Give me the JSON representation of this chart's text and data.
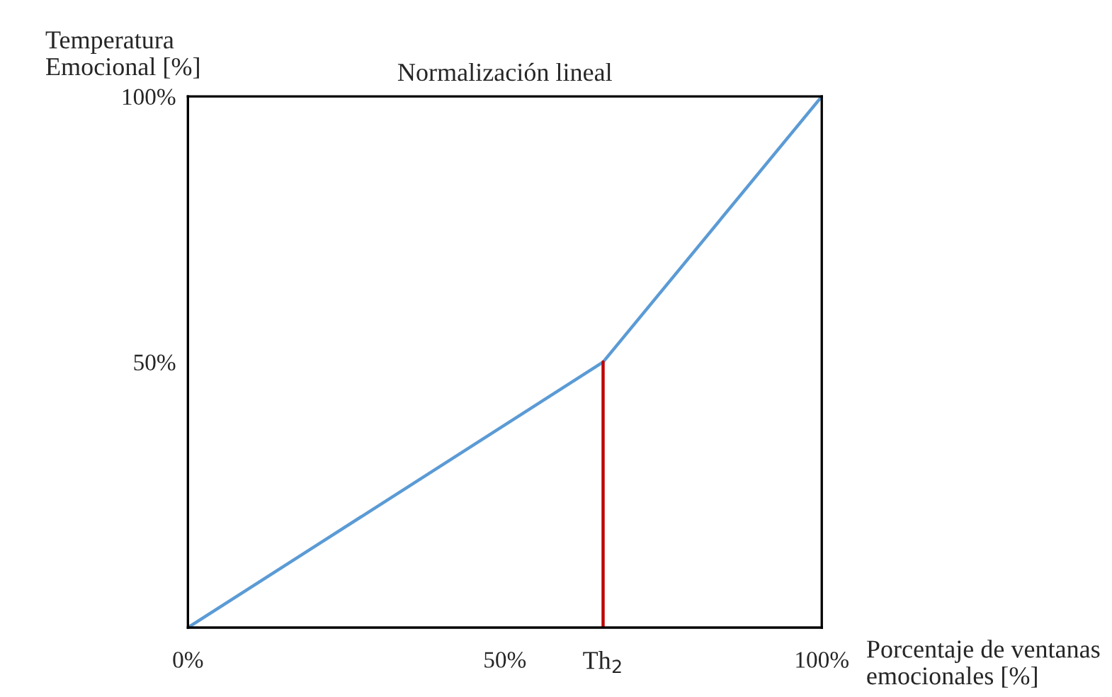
{
  "chart_data": {
    "type": "line",
    "title": "Normalización lineal",
    "xlabel": "Porcentaje de ventanas\nemocionales [%]",
    "ylabel": "Temperatura\nEmocional [%]",
    "series": [
      {
        "color": "#5b9bd5",
        "x": [
          0,
          65.5,
          100
        ],
        "values": [
          0,
          50,
          100
        ]
      },
      {
        "color": "#c00000",
        "x": [
          65.5,
          65.5
        ],
        "values": [
          0,
          50
        ]
      }
    ],
    "xlim": [
      0,
      100
    ],
    "ylim": [
      0,
      100
    ],
    "xticks": [
      {
        "value": 0,
        "label": "0%"
      },
      {
        "value": 50,
        "label": "50%"
      },
      {
        "value": 100,
        "label": "100%"
      }
    ],
    "yticks": [
      {
        "value": 50,
        "label": "50%"
      },
      {
        "value": 100,
        "label": "100%"
      }
    ],
    "annotations": [
      {
        "text": "Th$_{2}$",
        "x": 65.5,
        "y": 0
      }
    ],
    "marker": "none",
    "line_style": "solid"
  }
}
